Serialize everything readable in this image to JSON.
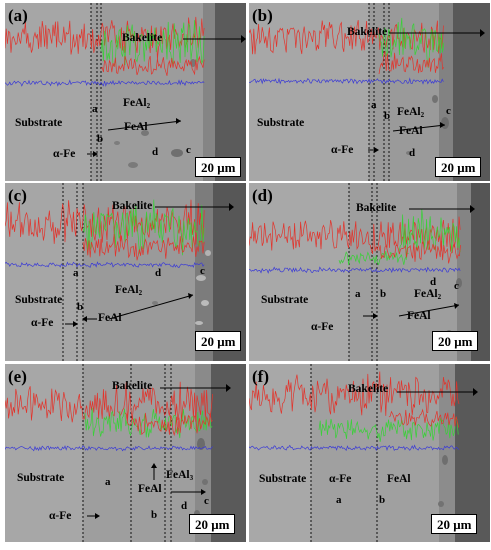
{
  "scale_bar": "20 μm",
  "colors": {
    "trace_red": "#e2332b",
    "trace_green": "#38d137",
    "trace_blue": "#3a3ad6",
    "substrate": "#a9a9a9",
    "resin": "#585858"
  },
  "panels": [
    {
      "id": "a",
      "letter": "(a)",
      "bakelite": "Bakelite",
      "substrate": "Substrate",
      "alpha": "α-Fe",
      "feal": "FeAl",
      "feal2": "FeAl",
      "sub2": "2",
      "la": "a",
      "lb": "b",
      "lc": "c",
      "ld": "d"
    },
    {
      "id": "b",
      "letter": "(b)",
      "bakelite": "Bakelite",
      "substrate": "Substrate",
      "alpha": "α-Fe",
      "feal": "FeAl",
      "feal2": "FeAl",
      "sub2": "2",
      "la": "a",
      "lb": "b",
      "lc": "c",
      "ld": "d"
    },
    {
      "id": "c",
      "letter": "(c)",
      "bakelite": "Bakelite",
      "substrate": "Substrate",
      "alpha": "α-Fe",
      "feal": "FeAl",
      "feal2": "FeAl",
      "sub2": "2",
      "la": "a",
      "lb": "b",
      "lc": "c",
      "ld": "d"
    },
    {
      "id": "d",
      "letter": "(d)",
      "bakelite": "Bakelite",
      "substrate": "Substrate",
      "alpha": "α-Fe",
      "feal": "FeAl",
      "feal2": "FeAl",
      "sub2": "2",
      "la": "a",
      "lb": "b",
      "lc": "c",
      "ld": "d"
    },
    {
      "id": "e",
      "letter": "(e)",
      "bakelite": "Bakelite",
      "substrate": "Substrate",
      "alpha": "α-Fe",
      "feal": "FeAl",
      "feal2": "FeAl",
      "sub2": "3",
      "la": "a",
      "lb": "b",
      "lc": "c",
      "ld": "d"
    },
    {
      "id": "f",
      "letter": "(f)",
      "bakelite": "Bakelite",
      "substrate": "Substrate",
      "alpha": "α-Fe",
      "feal": "FeAl",
      "la": "a",
      "lb": "b"
    }
  ]
}
